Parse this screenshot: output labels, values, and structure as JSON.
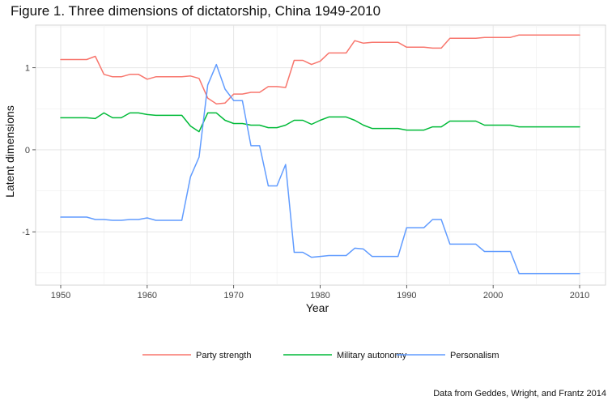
{
  "chart_data": {
    "type": "line",
    "title": "Figure 1. Three dimensions of dictatorship, China 1949-2010",
    "xlabel": "Year",
    "ylabel": "Latent dimensions",
    "caption": "Data from Geddes, Wright, and Frantz 2014",
    "xlim": [
      1950,
      2010
    ],
    "ylim": [
      -1.65,
      1.52
    ],
    "x_ticks": [
      1950,
      1960,
      1970,
      1980,
      1990,
      2000,
      2010
    ],
    "y_ticks": [
      1,
      0,
      -1
    ],
    "y_tick_labels": [
      "1",
      "0",
      "-1"
    ],
    "grid": true,
    "legend_position": "bottom",
    "x": [
      1950,
      1951,
      1952,
      1953,
      1954,
      1955,
      1956,
      1957,
      1958,
      1959,
      1960,
      1961,
      1962,
      1963,
      1964,
      1965,
      1966,
      1967,
      1968,
      1969,
      1970,
      1971,
      1972,
      1973,
      1974,
      1975,
      1976,
      1977,
      1978,
      1979,
      1980,
      1981,
      1982,
      1983,
      1984,
      1985,
      1986,
      1987,
      1988,
      1989,
      1990,
      1991,
      1992,
      1993,
      1994,
      1995,
      1996,
      1997,
      1998,
      1999,
      2000,
      2001,
      2002,
      2003,
      2004,
      2005,
      2006,
      2007,
      2008,
      2009,
      2010
    ],
    "series": [
      {
        "name": "Party strength",
        "color": "#F8766D",
        "values": [
          1.1,
          1.1,
          1.1,
          1.1,
          1.14,
          0.92,
          0.89,
          0.89,
          0.92,
          0.92,
          0.86,
          0.89,
          0.89,
          0.89,
          0.89,
          0.9,
          0.87,
          0.63,
          0.56,
          0.57,
          0.68,
          0.68,
          0.7,
          0.7,
          0.77,
          0.77,
          0.76,
          1.09,
          1.09,
          1.04,
          1.08,
          1.18,
          1.18,
          1.18,
          1.33,
          1.3,
          1.31,
          1.31,
          1.31,
          1.31,
          1.25,
          1.25,
          1.25,
          1.24,
          1.24,
          1.36,
          1.36,
          1.36,
          1.36,
          1.37,
          1.37,
          1.37,
          1.37,
          1.4,
          1.4,
          1.4,
          1.4,
          1.4,
          1.4,
          1.4,
          1.4
        ]
      },
      {
        "name": "Military autonomy",
        "color": "#00BA38",
        "values": [
          0.39,
          0.39,
          0.39,
          0.39,
          0.38,
          0.45,
          0.39,
          0.39,
          0.45,
          0.45,
          0.43,
          0.42,
          0.42,
          0.42,
          0.42,
          0.29,
          0.22,
          0.45,
          0.45,
          0.36,
          0.32,
          0.32,
          0.3,
          0.3,
          0.27,
          0.27,
          0.3,
          0.36,
          0.36,
          0.31,
          0.36,
          0.4,
          0.4,
          0.4,
          0.36,
          0.3,
          0.26,
          0.26,
          0.26,
          0.26,
          0.24,
          0.24,
          0.24,
          0.28,
          0.28,
          0.35,
          0.35,
          0.35,
          0.35,
          0.3,
          0.3,
          0.3,
          0.3,
          0.28,
          0.28,
          0.28,
          0.28,
          0.28,
          0.28,
          0.28,
          0.28
        ]
      },
      {
        "name": "Personalism",
        "color": "#619CFF",
        "values": [
          -0.82,
          -0.82,
          -0.82,
          -0.82,
          -0.85,
          -0.85,
          -0.86,
          -0.86,
          -0.85,
          -0.85,
          -0.83,
          -0.86,
          -0.86,
          -0.86,
          -0.86,
          -0.33,
          -0.09,
          0.79,
          1.04,
          0.74,
          0.6,
          0.6,
          0.05,
          0.05,
          -0.44,
          -0.44,
          -0.18,
          -1.25,
          -1.25,
          -1.31,
          -1.3,
          -1.29,
          -1.29,
          -1.29,
          -1.2,
          -1.21,
          -1.3,
          -1.3,
          -1.3,
          -1.3,
          -0.95,
          -0.95,
          -0.95,
          -0.85,
          -0.85,
          -1.15,
          -1.15,
          -1.15,
          -1.15,
          -1.24,
          -1.24,
          -1.24,
          -1.24,
          -1.51,
          -1.51,
          -1.51,
          -1.51,
          -1.51,
          -1.51,
          -1.51,
          -1.51
        ]
      }
    ]
  }
}
